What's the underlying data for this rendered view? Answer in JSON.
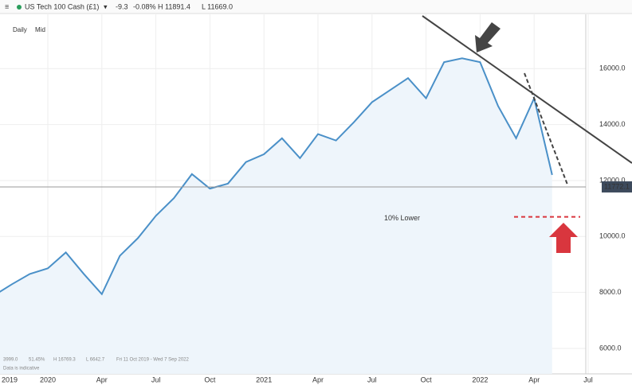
{
  "header": {
    "symbol": "US Tech 100 Cash (£1)",
    "change": "-9.3",
    "change_pct": "-0.08%",
    "high": "H 11891.4",
    "low": "L 11669.0"
  },
  "chart_data": {
    "type": "line",
    "interval": "Daily",
    "price_type": "Mid",
    "x": [
      "2019-10",
      "2019-11",
      "2019-12",
      "2020-01",
      "2020-02",
      "2020-03",
      "2020-04",
      "2020-05",
      "2020-06",
      "2020-07",
      "2020-08",
      "2020-09",
      "2020-10",
      "2020-11",
      "2020-12",
      "2021-01",
      "2021-02",
      "2021-03",
      "2021-04",
      "2021-05",
      "2021-06",
      "2021-07",
      "2021-08",
      "2021-09",
      "2021-10",
      "2021-11",
      "2021-12",
      "2022-01",
      "2022-02",
      "2022-03",
      "2022-04",
      "2022-05"
    ],
    "series": [
      {
        "name": "US Tech 100 Cash (£1)",
        "color": "#4a90c8",
        "values": [
          7890,
          8290,
          8660,
          8860,
          9430,
          8660,
          7940,
          9310,
          9940,
          10740,
          11370,
          12230,
          11710,
          11890,
          12660,
          12940,
          13510,
          12800,
          13660,
          13430,
          14090,
          14800,
          15230,
          15660,
          14940,
          16230,
          16370,
          16230,
          14660,
          13510,
          14940,
          12200
        ]
      }
    ],
    "ylim": [
      5090,
      17940
    ],
    "yticks": [
      {
        "value": 6000,
        "label": "6000.0"
      },
      {
        "value": 8000,
        "label": "8000.0"
      },
      {
        "value": 10000,
        "label": "10000.0"
      },
      {
        "value": 12000,
        "label": "12000.0"
      },
      {
        "value": 14000,
        "label": "14000.0"
      },
      {
        "value": 16000,
        "label": "16000.0"
      }
    ],
    "xticks": [
      {
        "value": "2019-10",
        "label": "2019"
      },
      {
        "value": "2020-01",
        "label": "2020"
      },
      {
        "value": "2020-04",
        "label": "Apr"
      },
      {
        "value": "2020-07",
        "label": "Jul"
      },
      {
        "value": "2020-10",
        "label": "Oct"
      },
      {
        "value": "2021-01",
        "label": "2021"
      },
      {
        "value": "2021-04",
        "label": "Apr"
      },
      {
        "value": "2021-07",
        "label": "Jul"
      },
      {
        "value": "2021-10",
        "label": "Oct"
      },
      {
        "value": "2022-01",
        "label": "2022"
      },
      {
        "value": "2022-04",
        "label": "Apr"
      },
      {
        "value": "2022-07",
        "label": "Jul"
      }
    ],
    "last_price": 11772.1,
    "annotation": {
      "text": "10% Lower",
      "value": 10700
    },
    "grid": true,
    "footer": {
      "low_close": "3999.0",
      "pct": "51.45%",
      "high": "H 16769.3",
      "low": "L 6642.7",
      "range": "Fri 11 Oct 2019 - Wed 7 Sep 2022",
      "note": "Data is indicative"
    }
  }
}
